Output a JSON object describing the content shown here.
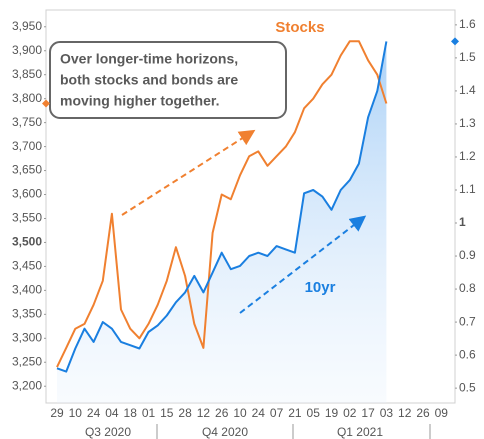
{
  "chart_data": {
    "type": "line",
    "categories": [
      "29",
      null,
      "10",
      null,
      "24",
      null,
      "04",
      null,
      "18",
      null,
      "01",
      null,
      "15",
      null,
      "28",
      null,
      "12",
      null,
      "26",
      null,
      "10",
      null,
      "24",
      null,
      "07",
      null,
      "21",
      null,
      "05",
      null,
      "19",
      null,
      "02",
      null,
      "17",
      null,
      "03",
      null,
      "12",
      null,
      "26",
      null,
      "09"
    ],
    "quarters": [
      "Q3 2020",
      "Q4 2020",
      "Q1 2021"
    ],
    "series": [
      {
        "name": "Stocks",
        "color": "#f08030",
        "axis": "y",
        "values": [
          3240,
          3280,
          3320,
          3330,
          3370,
          3420,
          3560,
          3360,
          3320,
          3300,
          3330,
          3370,
          3420,
          3490,
          3430,
          3330,
          3280,
          3520,
          3600,
          3590,
          3640,
          3680,
          3690,
          3660,
          3680,
          3700,
          3730,
          3780,
          3800,
          3830,
          3850,
          3890,
          3920,
          3920,
          3880,
          3850,
          3790,
          null,
          null,
          null,
          null,
          null,
          null
        ]
      },
      {
        "name": "10yr",
        "color": "#1a7fe0",
        "axis": "y2",
        "values": [
          0.56,
          0.55,
          0.62,
          0.68,
          0.64,
          0.7,
          0.68,
          0.64,
          0.63,
          0.62,
          0.67,
          0.69,
          0.72,
          0.76,
          0.79,
          0.84,
          0.79,
          0.85,
          0.91,
          0.86,
          0.87,
          0.9,
          0.91,
          0.9,
          0.93,
          0.92,
          0.91,
          1.09,
          1.1,
          1.08,
          1.04,
          1.1,
          1.13,
          1.18,
          1.32,
          1.4,
          1.55,
          null,
          null,
          null,
          null,
          null,
          null
        ]
      }
    ],
    "ylim": [
      3165,
      3985
    ],
    "yticks": [
      {
        "value": 3200,
        "label": "3,200"
      },
      {
        "value": 3250,
        "label": "3,250"
      },
      {
        "value": 3300,
        "label": "3,300"
      },
      {
        "value": 3350,
        "label": "3,350"
      },
      {
        "value": 3400,
        "label": "3,400"
      },
      {
        "value": 3450,
        "label": "3,450"
      },
      {
        "value": 3500,
        "label": "3,500"
      },
      {
        "value": 3550,
        "label": "3,550"
      },
      {
        "value": 3600,
        "label": "3,600"
      },
      {
        "value": 3650,
        "label": "3,650"
      },
      {
        "value": 3700,
        "label": "3,700"
      },
      {
        "value": 3750,
        "label": "3,750"
      },
      {
        "value": 3800,
        "label": "3,800"
      },
      {
        "value": 3850,
        "label": "3,850"
      },
      {
        "value": 3900,
        "label": "3,900"
      },
      {
        "value": 3950,
        "label": "3,950"
      }
    ],
    "y2lim": [
      0.455,
      1.645
    ],
    "y2ticks": [
      0.5,
      0.6,
      0.7,
      0.8,
      0.9,
      1,
      1.1,
      1.2,
      1.3,
      1.4,
      1.5,
      1.6
    ],
    "grid": false,
    "annotation": [
      "Over longer-time horizons,",
      "both stocks and bonds are",
      "moving higher together."
    ]
  }
}
